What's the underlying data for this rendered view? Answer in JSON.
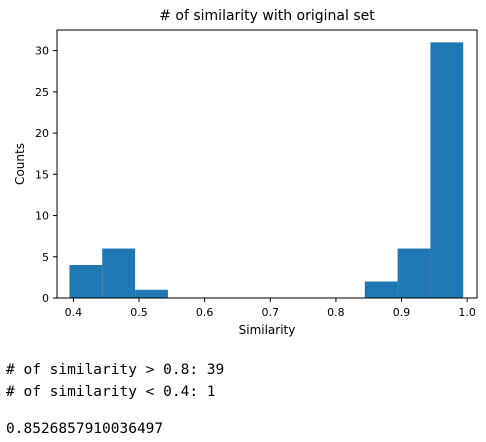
{
  "chart_data": {
    "type": "histogram",
    "title": "# of similarity with original set",
    "xlabel": "Similarity",
    "ylabel": "Counts",
    "xlim": [
      0.375,
      1.015
    ],
    "ylim": [
      0,
      32.5
    ],
    "xticks": [
      0.4,
      0.5,
      0.6,
      0.7,
      0.8,
      0.9,
      1.0
    ],
    "xtick_labels": [
      "0.4",
      "0.5",
      "0.6",
      "0.7",
      "0.8",
      "0.9",
      "1.0"
    ],
    "yticks": [
      0,
      5,
      10,
      15,
      20,
      25,
      30
    ],
    "ytick_labels": [
      "0",
      "5",
      "10",
      "15",
      "20",
      "25",
      "30"
    ],
    "bin_edges": [
      0.394,
      0.444,
      0.494,
      0.544,
      0.594,
      0.644,
      0.694,
      0.744,
      0.794,
      0.844,
      0.894,
      0.944,
      0.994
    ],
    "counts": [
      4,
      6,
      1,
      0,
      0,
      0,
      0,
      0,
      0,
      2,
      6,
      31
    ],
    "bar_color": "#1f77b4",
    "grid": false
  },
  "output": {
    "line1": "# of similarity > 0.8: 39",
    "line2": "# of similarity < 0.4: 1",
    "line3": "0.8526857910036497"
  }
}
